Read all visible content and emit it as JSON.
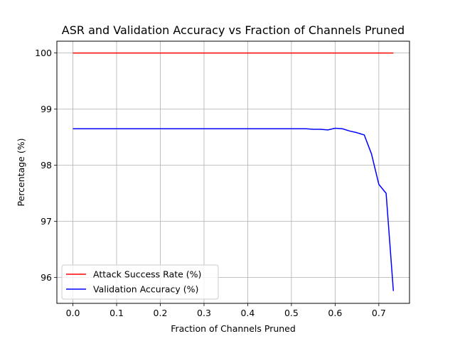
{
  "chart_data": {
    "type": "line",
    "title": "ASR and Validation Accuracy vs Fraction of Channels Pruned",
    "xlabel": "Fraction of Channels Pruned",
    "ylabel": "Percentage (%)",
    "xlim": [
      -0.0367,
      0.7702
    ],
    "ylim": [
      95.54,
      100.21
    ],
    "xticks": [
      0.0,
      0.1,
      0.2,
      0.3,
      0.4,
      0.5,
      0.6,
      0.7
    ],
    "xtick_labels": [
      "0.0",
      "0.1",
      "0.2",
      "0.3",
      "0.4",
      "0.5",
      "0.6",
      "0.7"
    ],
    "yticks": [
      96,
      97,
      98,
      99,
      100
    ],
    "ytick_labels": [
      "96",
      "97",
      "98",
      "99",
      "100"
    ],
    "grid": true,
    "legend_position": "lower-left",
    "series": [
      {
        "name": "Attack Success Rate (%)",
        "color": "#ff0000",
        "x": [
          0.0,
          0.7333
        ],
        "y": [
          100.0,
          100.0
        ]
      },
      {
        "name": "Validation Accuracy (%)",
        "color": "#0000ff",
        "x": [
          0.0,
          0.1,
          0.2,
          0.3,
          0.4,
          0.5,
          0.5333,
          0.55,
          0.5667,
          0.5833,
          0.6,
          0.6167,
          0.6333,
          0.65,
          0.6667,
          0.6833,
          0.7,
          0.7167,
          0.7333
        ],
        "y": [
          98.65,
          98.65,
          98.65,
          98.65,
          98.65,
          98.65,
          98.65,
          98.64,
          98.64,
          98.63,
          98.66,
          98.65,
          98.61,
          98.58,
          98.54,
          98.2,
          97.66,
          97.5,
          95.76
        ]
      }
    ]
  }
}
